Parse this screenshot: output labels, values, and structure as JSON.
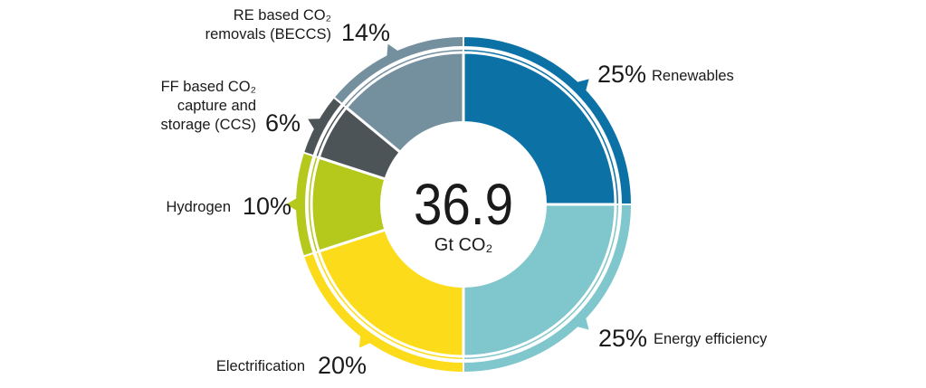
{
  "chart_data": {
    "type": "pie",
    "center": {
      "value": "36.9",
      "unit": "Gt CO₂"
    },
    "slices": [
      {
        "label": "Renewables",
        "percent_label": "25%",
        "value": 25,
        "color": "#0c72a6"
      },
      {
        "label": "Energy efficiency",
        "percent_label": "25%",
        "value": 25,
        "color": "#7fc6cd"
      },
      {
        "label": "Electrification",
        "percent_label": "20%",
        "value": 20,
        "color": "#fcdc1a"
      },
      {
        "label": "Hydrogen",
        "percent_label": "10%",
        "value": 10,
        "color": "#b5c81c"
      },
      {
        "label": "FF based CO₂ capture and storage (CCS)",
        "label_lines": [
          "FF based CO₂",
          "capture and",
          "storage (CCS)"
        ],
        "percent_label": "6%",
        "value": 6,
        "color": "#4c5458"
      },
      {
        "label": "RE based CO₂ removals (BECCS)",
        "label_lines": [
          "RE based CO₂",
          "removals (BECCS)"
        ],
        "percent_label": "14%",
        "value": 14,
        "color": "#74909f"
      }
    ]
  }
}
